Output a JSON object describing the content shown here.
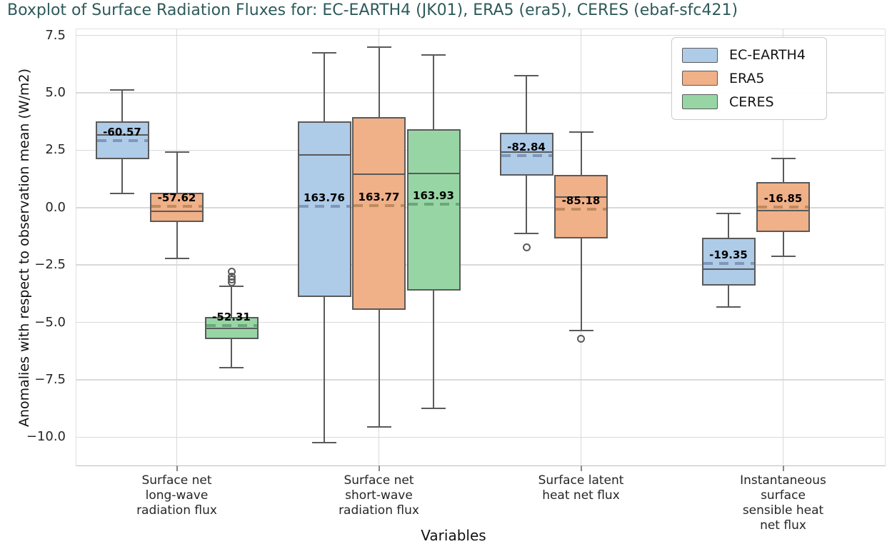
{
  "chart_data": {
    "type": "box",
    "title": "Boxplot of Surface Radiation Fluxes for: EC-EARTH4 (JK01), ERA5 (era5), CERES (ebaf-sfc421)",
    "ylabel": "Anomalies with respect to observation mean (W/m2)",
    "xlabel": "Variables",
    "ylim": [
      -11.2,
      7.8
    ],
    "yticks": [
      7.5,
      5.0,
      2.5,
      0.0,
      -2.5,
      -5.0,
      -7.5,
      -10.0
    ],
    "grid": "both",
    "legend_position": "upper-right",
    "title_color": "#2e5a5a",
    "line_color": "#5a5a5a",
    "grid_color": "#d9d9d9",
    "series": [
      {
        "name": "EC-EARTH4",
        "fill": "#aecbe8",
        "dash": "#7e97ba"
      },
      {
        "name": "ERA5",
        "fill": "#f0b088",
        "dash": "#bf8a5e"
      },
      {
        "name": "CERES",
        "fill": "#97d6a4",
        "dash": "#68a87a"
      }
    ],
    "categories": [
      {
        "label_lines": [
          "Surface net",
          "long-wave",
          "radiation flux"
        ],
        "boxes": [
          {
            "series": "EC-EARTH4",
            "mean_label": "-60.57",
            "whisker_low": 0.62,
            "q1": 2.12,
            "median": 3.17,
            "mean": 2.92,
            "q3": 3.75,
            "whisker_high": 5.12,
            "outliers": []
          },
          {
            "series": "ERA5",
            "mean_label": "-57.62",
            "whisker_low": -2.2,
            "q1": -0.62,
            "median": -0.15,
            "mean": 0.06,
            "q3": 0.65,
            "whisker_high": 2.43,
            "outliers": []
          },
          {
            "series": "CERES",
            "mean_label": "-52.31",
            "whisker_low": -6.98,
            "q1": -5.72,
            "median": -5.26,
            "mean": -5.15,
            "q3": -4.77,
            "whisker_high": -3.42,
            "outliers": [
              -2.78,
              -3.0,
              -3.12,
              -3.24
            ]
          }
        ]
      },
      {
        "label_lines": [
          "Surface net",
          "short-wave",
          "radiation flux"
        ],
        "boxes": [
          {
            "series": "EC-EARTH4",
            "mean_label": "163.76",
            "whisker_low": -10.25,
            "q1": -3.88,
            "median": 2.3,
            "mean": 0.05,
            "q3": 3.75,
            "whisker_high": 6.75,
            "outliers": []
          },
          {
            "series": "ERA5",
            "mean_label": "163.77",
            "whisker_low": -9.55,
            "q1": -4.46,
            "median": 1.45,
            "mean": 0.08,
            "q3": 3.95,
            "whisker_high": 7.0,
            "outliers": []
          },
          {
            "series": "CERES",
            "mean_label": "163.93",
            "whisker_low": -8.75,
            "q1": -3.6,
            "median": 1.5,
            "mean": 0.15,
            "q3": 3.4,
            "whisker_high": 6.65,
            "outliers": []
          }
        ]
      },
      {
        "label_lines": [
          "Surface latent",
          "heat net flux"
        ],
        "boxes": [
          {
            "series": "EC-EARTH4",
            "mean_label": "-82.84",
            "whisker_low": -1.14,
            "q1": 1.38,
            "median": 2.42,
            "mean": 2.28,
            "q3": 3.26,
            "whisker_high": 5.75,
            "outliers": [
              -1.72
            ]
          },
          {
            "series": "ERA5",
            "mean_label": "-85.18",
            "whisker_low": -5.35,
            "q1": -1.33,
            "median": 0.47,
            "mean": -0.08,
            "q3": 1.42,
            "whisker_high": 3.3,
            "outliers": [
              -5.72
            ]
          }
        ]
      },
      {
        "label_lines": [
          "Instantaneous",
          "surface",
          "sensible heat",
          "net flux"
        ],
        "boxes": [
          {
            "series": "EC-EARTH4",
            "mean_label": "-19.35",
            "whisker_low": -4.32,
            "q1": -3.4,
            "median": -2.67,
            "mean": -2.44,
            "q3": -1.32,
            "whisker_high": -0.25,
            "outliers": []
          },
          {
            "series": "ERA5",
            "mean_label": "-16.85",
            "whisker_low": -2.13,
            "q1": -1.05,
            "median": -0.14,
            "mean": 0.03,
            "q3": 1.1,
            "whisker_high": 2.14,
            "outliers": []
          }
        ]
      }
    ]
  }
}
